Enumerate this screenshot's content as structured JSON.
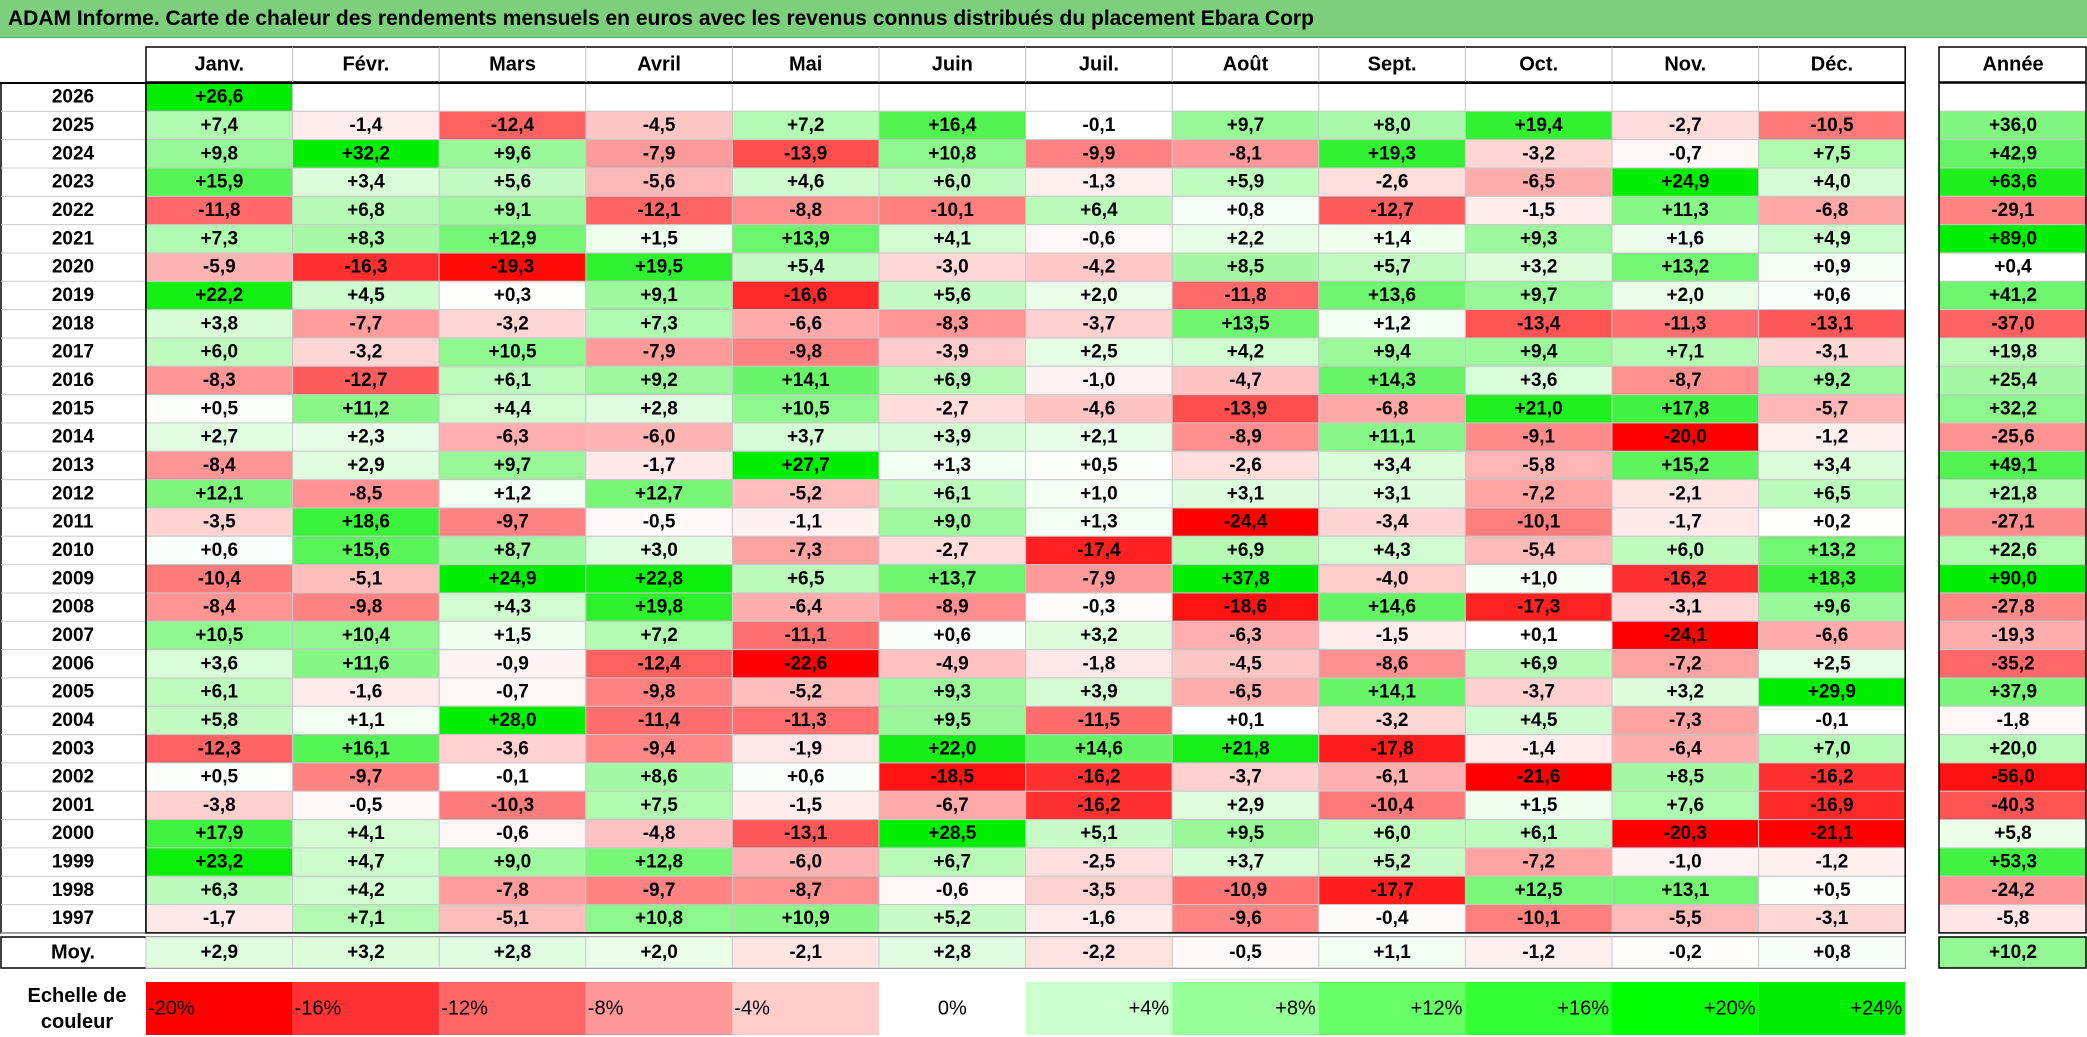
{
  "title": "ADAM Informe. Carte de chaleur des rendements mensuels en euros avec les revenus connus distribués du placement Ebara Corp",
  "chart_data": {
    "type": "heatmap",
    "title": "ADAM Informe. Carte de chaleur des rendements mensuels en euros avec les revenus connus distribués du placement Ebara Corp",
    "columns": [
      "Janv.",
      "Févr.",
      "Mars",
      "Avril",
      "Mai",
      "Juin",
      "Juil.",
      "Août",
      "Sept.",
      "Oct.",
      "Nov.",
      "Déc."
    ],
    "year_column_label": "Année",
    "rows": [
      {
        "year": "2026",
        "values": [
          "+26,6",
          "",
          "",
          "",
          "",
          "",
          "",
          "",
          "",
          "",
          "",
          ""
        ],
        "annual": ""
      },
      {
        "year": "2025",
        "values": [
          "+7,4",
          "-1,4",
          "-12,4",
          "-4,5",
          "+7,2",
          "+16,4",
          "-0,1",
          "+9,7",
          "+8,0",
          "+19,4",
          "-2,7",
          "-10,5"
        ],
        "annual": "+36,0"
      },
      {
        "year": "2024",
        "values": [
          "+9,8",
          "+32,2",
          "+9,6",
          "-7,9",
          "-13,9",
          "+10,8",
          "-9,9",
          "-8,1",
          "+19,3",
          "-3,2",
          "-0,7",
          "+7,5"
        ],
        "annual": "+42,9"
      },
      {
        "year": "2023",
        "values": [
          "+15,9",
          "+3,4",
          "+5,6",
          "-5,6",
          "+4,6",
          "+6,0",
          "-1,3",
          "+5,9",
          "-2,6",
          "-6,5",
          "+24,9",
          "+4,0"
        ],
        "annual": "+63,6"
      },
      {
        "year": "2022",
        "values": [
          "-11,8",
          "+6,8",
          "+9,1",
          "-12,1",
          "-8,8",
          "-10,1",
          "+6,4",
          "+0,8",
          "-12,7",
          "-1,5",
          "+11,3",
          "-6,8"
        ],
        "annual": "-29,1"
      },
      {
        "year": "2021",
        "values": [
          "+7,3",
          "+8,3",
          "+12,9",
          "+1,5",
          "+13,9",
          "+4,1",
          "-0,6",
          "+2,2",
          "+1,4",
          "+9,3",
          "+1,6",
          "+4,9"
        ],
        "annual": "+89,0"
      },
      {
        "year": "2020",
        "values": [
          "-5,9",
          "-16,3",
          "-19,3",
          "+19,5",
          "+5,4",
          "-3,0",
          "-4,2",
          "+8,5",
          "+5,7",
          "+3,2",
          "+13,2",
          "+0,9"
        ],
        "annual": "+0,4"
      },
      {
        "year": "2019",
        "values": [
          "+22,2",
          "+4,5",
          "+0,3",
          "+9,1",
          "-16,6",
          "+5,6",
          "+2,0",
          "-11,8",
          "+13,6",
          "+9,7",
          "+2,0",
          "+0,6"
        ],
        "annual": "+41,2"
      },
      {
        "year": "2018",
        "values": [
          "+3,8",
          "-7,7",
          "-3,2",
          "+7,3",
          "-6,6",
          "-8,3",
          "-3,7",
          "+13,5",
          "+1,2",
          "-13,4",
          "-11,3",
          "-13,1"
        ],
        "annual": "-37,0"
      },
      {
        "year": "2017",
        "values": [
          "+6,0",
          "-3,2",
          "+10,5",
          "-7,9",
          "-9,8",
          "-3,9",
          "+2,5",
          "+4,2",
          "+9,4",
          "+9,4",
          "+7,1",
          "-3,1"
        ],
        "annual": "+19,8"
      },
      {
        "year": "2016",
        "values": [
          "-8,3",
          "-12,7",
          "+6,1",
          "+9,2",
          "+14,1",
          "+6,9",
          "-1,0",
          "-4,7",
          "+14,3",
          "+3,6",
          "-8,7",
          "+9,2"
        ],
        "annual": "+25,4"
      },
      {
        "year": "2015",
        "values": [
          "+0,5",
          "+11,2",
          "+4,4",
          "+2,8",
          "+10,5",
          "-2,7",
          "-4,6",
          "-13,9",
          "-6,8",
          "+21,0",
          "+17,8",
          "-5,7"
        ],
        "annual": "+32,2"
      },
      {
        "year": "2014",
        "values": [
          "+2,7",
          "+2,3",
          "-6,3",
          "-6,0",
          "+3,7",
          "+3,9",
          "+2,1",
          "-8,9",
          "+11,1",
          "-9,1",
          "-20,0",
          "-1,2"
        ],
        "annual": "-25,6"
      },
      {
        "year": "2013",
        "values": [
          "-8,4",
          "+2,9",
          "+9,7",
          "-1,7",
          "+27,7",
          "+1,3",
          "+0,5",
          "-2,6",
          "+3,4",
          "-5,8",
          "+15,2",
          "+3,4"
        ],
        "annual": "+49,1"
      },
      {
        "year": "2012",
        "values": [
          "+12,1",
          "-8,5",
          "+1,2",
          "+12,7",
          "-5,2",
          "+6,1",
          "+1,0",
          "+3,1",
          "+3,1",
          "-7,2",
          "-2,1",
          "+6,5"
        ],
        "annual": "+21,8"
      },
      {
        "year": "2011",
        "values": [
          "-3,5",
          "+18,6",
          "-9,7",
          "-0,5",
          "-1,1",
          "+9,0",
          "+1,3",
          "-24,4",
          "-3,4",
          "-10,1",
          "-1,7",
          "+0,2"
        ],
        "annual": "-27,1"
      },
      {
        "year": "2010",
        "values": [
          "+0,6",
          "+15,6",
          "+8,7",
          "+3,0",
          "-7,3",
          "-2,7",
          "-17,4",
          "+6,9",
          "+4,3",
          "-5,4",
          "+6,0",
          "+13,2"
        ],
        "annual": "+22,6"
      },
      {
        "year": "2009",
        "values": [
          "-10,4",
          "-5,1",
          "+24,9",
          "+22,8",
          "+6,5",
          "+13,7",
          "-7,9",
          "+37,8",
          "-4,0",
          "+1,0",
          "-16,2",
          "+18,3"
        ],
        "annual": "+90,0"
      },
      {
        "year": "2008",
        "values": [
          "-8,4",
          "-9,8",
          "+4,3",
          "+19,8",
          "-6,4",
          "-8,9",
          "-0,3",
          "-18,6",
          "+14,6",
          "-17,3",
          "-3,1",
          "+9,6"
        ],
        "annual": "-27,8"
      },
      {
        "year": "2007",
        "values": [
          "+10,5",
          "+10,4",
          "+1,5",
          "+7,2",
          "-11,1",
          "+0,6",
          "+3,2",
          "-6,3",
          "-1,5",
          "+0,1",
          "-24,1",
          "-6,6"
        ],
        "annual": "-19,3"
      },
      {
        "year": "2006",
        "values": [
          "+3,6",
          "+11,6",
          "-0,9",
          "-12,4",
          "-22,6",
          "-4,9",
          "-1,8",
          "-4,5",
          "-8,6",
          "+6,9",
          "-7,2",
          "+2,5"
        ],
        "annual": "-35,2"
      },
      {
        "year": "2005",
        "values": [
          "+6,1",
          "-1,6",
          "-0,7",
          "-9,8",
          "-5,2",
          "+9,3",
          "+3,9",
          "-6,5",
          "+14,1",
          "-3,7",
          "+3,2",
          "+29,9"
        ],
        "annual": "+37,9"
      },
      {
        "year": "2004",
        "values": [
          "+5,8",
          "+1,1",
          "+28,0",
          "-11,4",
          "-11,3",
          "+9,5",
          "-11,5",
          "+0,1",
          "-3,2",
          "+4,5",
          "-7,3",
          "-0,1"
        ],
        "annual": "-1,8"
      },
      {
        "year": "2003",
        "values": [
          "-12,3",
          "+16,1",
          "-3,6",
          "-9,4",
          "-1,9",
          "+22,0",
          "+14,6",
          "+21,8",
          "-17,8",
          "-1,4",
          "-6,4",
          "+7,0"
        ],
        "annual": "+20,0"
      },
      {
        "year": "2002",
        "values": [
          "+0,5",
          "-9,7",
          "-0,1",
          "+8,6",
          "+0,6",
          "-18,5",
          "-16,2",
          "-3,7",
          "-6,1",
          "-21,6",
          "+8,5",
          "-16,2"
        ],
        "annual": "-56,0"
      },
      {
        "year": "2001",
        "values": [
          "-3,8",
          "-0,5",
          "-10,3",
          "+7,5",
          "-1,5",
          "-6,7",
          "-16,2",
          "+2,9",
          "-10,4",
          "+1,5",
          "+7,6",
          "-16,9"
        ],
        "annual": "-40,3"
      },
      {
        "year": "2000",
        "values": [
          "+17,9",
          "+4,1",
          "-0,6",
          "-4,8",
          "-13,1",
          "+28,5",
          "+5,1",
          "+9,5",
          "+6,0",
          "+6,1",
          "-20,3",
          "-21,1"
        ],
        "annual": "+5,8"
      },
      {
        "year": "1999",
        "values": [
          "+23,2",
          "+4,7",
          "+9,0",
          "+12,8",
          "-6,0",
          "+6,7",
          "-2,5",
          "+3,7",
          "+5,2",
          "-7,2",
          "-1,0",
          "-1,2"
        ],
        "annual": "+53,3"
      },
      {
        "year": "1998",
        "values": [
          "+6,3",
          "+4,2",
          "-7,8",
          "-9,7",
          "-8,7",
          "-0,6",
          "-3,5",
          "-10,9",
          "-17,7",
          "+12,5",
          "+13,1",
          "+0,5"
        ],
        "annual": "-24,2"
      },
      {
        "year": "1997",
        "values": [
          "-1,7",
          "+7,1",
          "-5,1",
          "+10,8",
          "+10,9",
          "+5,2",
          "-1,6",
          "-9,6",
          "-0,4",
          "-10,1",
          "-5,5",
          "-3,1"
        ],
        "annual": "-5,8"
      }
    ],
    "average": {
      "label": "Moy.",
      "values": [
        "+2,9",
        "+3,2",
        "+2,8",
        "+2,0",
        "-2,1",
        "+2,8",
        "-2,2",
        "-0,5",
        "+1,1",
        "-1,2",
        "-0,2",
        "+0,8"
      ],
      "annual": "+10,2"
    },
    "color_scale": {
      "label_line1": "Echelle de",
      "label_line2": "couleur",
      "steps": [
        {
          "label": "-20%",
          "color": "#ff0000"
        },
        {
          "label": "-16%",
          "color": "#ff3333"
        },
        {
          "label": "-12%",
          "color": "#ff6666"
        },
        {
          "label": "-8%",
          "color": "#ff9999"
        },
        {
          "label": "-4%",
          "color": "#ffcccc"
        },
        {
          "label": "0%",
          "color": "#ffffff"
        },
        {
          "label": "+4%",
          "color": "#ccffcc"
        },
        {
          "label": "+8%",
          "color": "#99ff99"
        },
        {
          "label": "+12%",
          "color": "#66ff66"
        },
        {
          "label": "+16%",
          "color": "#33ff33"
        },
        {
          "label": "+20%",
          "color": "#00ff00"
        },
        {
          "label": "+24%",
          "color": "#00ee00"
        }
      ]
    },
    "colors": {
      "negative_max": "#ff0000",
      "zero": "#ffffff",
      "positive_max": "#00ee00",
      "title_background": "#7dcf7d"
    },
    "scale_range": [
      -20,
      24
    ]
  }
}
